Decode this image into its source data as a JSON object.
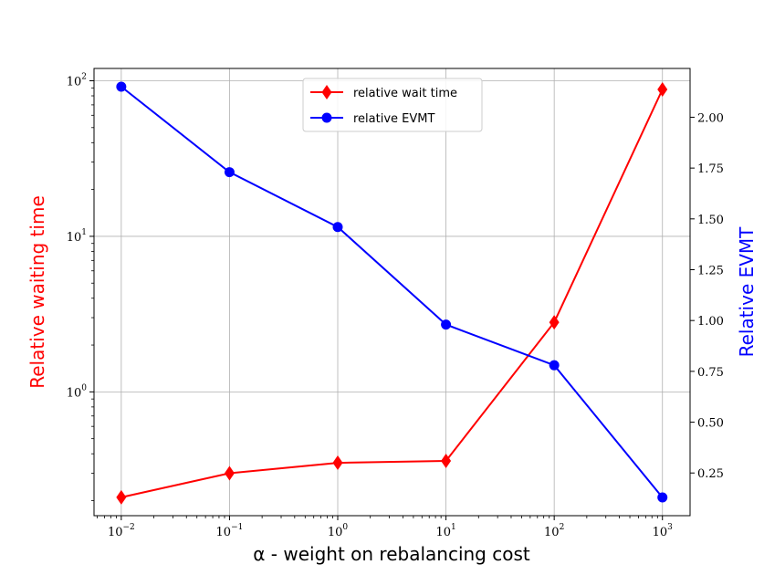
{
  "chart_data": {
    "type": "line",
    "xscale": "log",
    "x": [
      0.01,
      0.1,
      1,
      10,
      100,
      1000
    ],
    "xlabel": "α - weight on rebalancing cost",
    "xtick_exponents": [
      "-2",
      "-1",
      "0",
      "1",
      "2",
      "3"
    ],
    "xlim": [
      0.0056,
      1800
    ],
    "grid": true,
    "legend_location": "upper center",
    "left_axis": {
      "label": "Relative waiting time",
      "label_color": "#ff0000",
      "scale": "log",
      "ylim": [
        0.16,
        120
      ],
      "tick_exponents": [
        "-0",
        "1",
        "2"
      ],
      "tick_values": [
        1,
        10,
        100
      ]
    },
    "right_axis": {
      "label": "Relative EVMT",
      "label_color": "#0000ff",
      "scale": "linear",
      "ylim": [
        0.04,
        2.24
      ],
      "ticks": [
        "0.25",
        "0.50",
        "0.75",
        "1.00",
        "1.25",
        "1.50",
        "1.75",
        "2.00"
      ]
    },
    "series": [
      {
        "name": "relative wait time",
        "axis": "left",
        "color": "#ff0000",
        "marker": "diamond",
        "values": [
          0.21,
          0.3,
          0.35,
          0.36,
          2.8,
          88
        ]
      },
      {
        "name": "relative EVMT",
        "axis": "right",
        "color": "#0000ff",
        "marker": "circle",
        "values": [
          2.15,
          1.73,
          1.46,
          0.98,
          0.78,
          0.13
        ]
      }
    ]
  }
}
